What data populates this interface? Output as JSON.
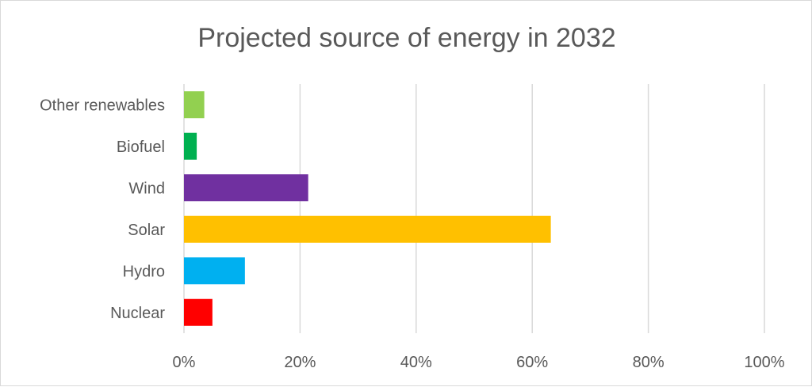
{
  "chart_data": {
    "type": "bar",
    "orientation": "horizontal",
    "title": "Projected source of energy in 2032",
    "xlabel": "",
    "ylabel": "",
    "categories": [
      "Other renewables",
      "Biofuel",
      "Wind",
      "Solar",
      "Hydro",
      "Nuclear"
    ],
    "values": [
      0.035,
      0.022,
      0.214,
      0.632,
      0.105,
      0.049
    ],
    "bar_colors": [
      "#92d050",
      "#00b050",
      "#7030a0",
      "#ffc000",
      "#00b0f0",
      "#ff0000"
    ],
    "xlim": [
      0,
      1
    ],
    "x_ticks": [
      0,
      0.2,
      0.4,
      0.6,
      0.8,
      1.0
    ],
    "x_tick_labels": [
      "0%",
      "20%",
      "40%",
      "60%",
      "80%",
      "100%"
    ],
    "grid": "vertical",
    "legend": "none"
  },
  "colors": {
    "text": "#595959",
    "gridline": "#d9d9d9",
    "border": "#d9d9d9"
  }
}
